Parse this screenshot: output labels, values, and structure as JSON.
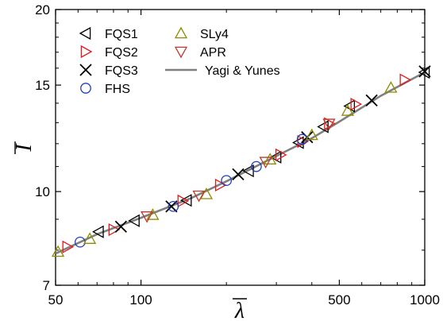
{
  "chart_data": {
    "type": "scatter",
    "title": "",
    "xlabel": "λ",
    "ylabel": "I",
    "xscale": "log",
    "yscale": "log",
    "xlim": [
      50,
      1000
    ],
    "ylim": [
      7,
      20
    ],
    "xticks": [
      {
        "value": 50,
        "label": "50"
      },
      {
        "value": 100,
        "label": "100"
      },
      {
        "value": 500,
        "label": "500"
      },
      {
        "value": 1000,
        "label": "1000"
      }
    ],
    "yticks": [
      {
        "value": 7,
        "label": "7"
      },
      {
        "value": 10,
        "label": "10"
      },
      {
        "value": 15,
        "label": "15"
      },
      {
        "value": 20,
        "label": "20"
      }
    ],
    "grid": false,
    "legend_position": "top-left",
    "series": [
      {
        "name": "FQS1",
        "marker": "triangle-left",
        "color": "#000000",
        "x": [
          71,
          95,
          145,
          240,
          300,
          360,
          440,
          545,
          1000
        ],
        "y": [
          8.58,
          8.95,
          9.67,
          10.82,
          11.4,
          12.05,
          12.8,
          13.85,
          15.75
        ]
      },
      {
        "name": "FQS2",
        "marker": "triangle-right",
        "color": "#e31a1c",
        "x": [
          55,
          80,
          140,
          190,
          310,
          370,
          460,
          570,
          850
        ],
        "y": [
          8.1,
          8.65,
          9.65,
          10.25,
          11.5,
          12.1,
          12.95,
          13.95,
          15.3
        ]
      },
      {
        "name": "FQS3",
        "marker": "x",
        "color": "#000000",
        "x": [
          85,
          128,
          220,
          385,
          650,
          1000
        ],
        "y": [
          8.75,
          9.45,
          10.68,
          12.3,
          14.15,
          15.8
        ]
      },
      {
        "name": "FHS",
        "marker": "circle",
        "color": "#1f3fbf",
        "x": [
          61,
          130,
          200,
          255,
          370
        ],
        "y": [
          8.25,
          9.45,
          10.43,
          11.0,
          12.2
        ]
      },
      {
        "name": "SLy4",
        "marker": "triangle-up",
        "color": "#8c8c00",
        "x": [
          51,
          66,
          110,
          170,
          285,
          400,
          535,
          760
        ],
        "y": [
          7.95,
          8.35,
          9.15,
          9.9,
          11.3,
          12.4,
          13.6,
          14.85
        ]
      },
      {
        "name": "APR",
        "marker": "triangle-down",
        "color": "#c0392b",
        "x": [
          105,
          160,
          275,
          460
        ],
        "y": [
          9.1,
          9.85,
          11.2,
          12.95
        ]
      },
      {
        "name": "Yagi & Yunes",
        "marker": "line",
        "color": "#808080",
        "x": [
          50,
          70,
          100,
          150,
          200,
          300,
          400,
          500,
          700,
          1000
        ],
        "y": [
          7.9,
          8.5,
          9.05,
          9.75,
          10.4,
          11.45,
          12.25,
          13.05,
          14.4,
          15.75
        ]
      }
    ]
  }
}
